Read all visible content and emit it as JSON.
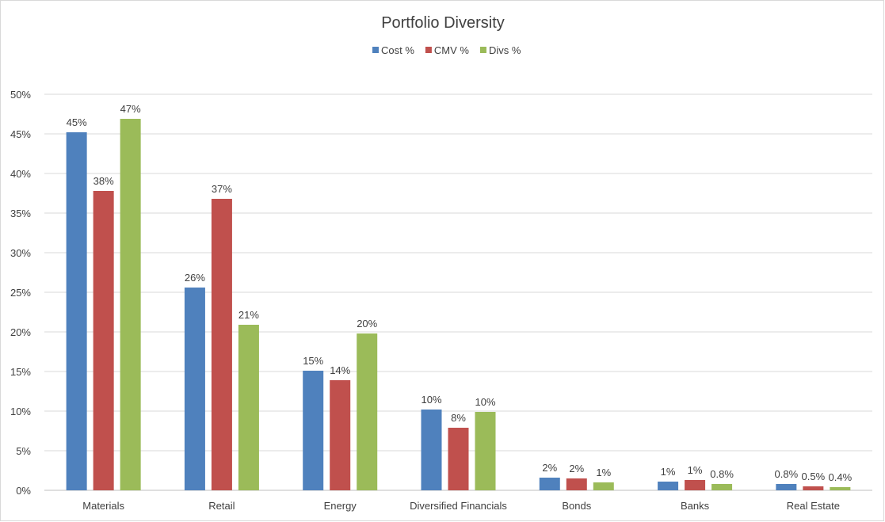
{
  "chart_data": {
    "type": "bar",
    "title": "Portfolio Diversity",
    "xlabel": "",
    "ylabel": "",
    "ylim": [
      0,
      50
    ],
    "yticks": [
      "0%",
      "5%",
      "10%",
      "15%",
      "20%",
      "25%",
      "30%",
      "35%",
      "40%",
      "45%",
      "50%"
    ],
    "grid": true,
    "legend_position": "top",
    "categories": [
      "Materials",
      "Retail",
      "Energy",
      "Diversified Financials",
      "Bonds",
      "Banks",
      "Real Estate"
    ],
    "series": [
      {
        "name": "Cost %",
        "color": "#4f81bd",
        "values": [
          45.2,
          25.6,
          15.1,
          10.2,
          1.6,
          1.1,
          0.8
        ],
        "labels": [
          "45%",
          "26%",
          "15%",
          "10%",
          "2%",
          "1%",
          "0.8%"
        ]
      },
      {
        "name": "CMV %",
        "color": "#c0504d",
        "values": [
          37.8,
          36.8,
          13.9,
          7.9,
          1.5,
          1.3,
          0.5
        ],
        "labels": [
          "38%",
          "37%",
          "14%",
          "8%",
          "2%",
          "1%",
          "0.5%"
        ]
      },
      {
        "name": "Divs %",
        "color": "#9bbb59",
        "values": [
          46.9,
          20.9,
          19.8,
          9.9,
          1.0,
          0.8,
          0.4
        ],
        "labels": [
          "47%",
          "21%",
          "20%",
          "10%",
          "1%",
          "0.8%",
          "0.4%"
        ]
      }
    ]
  }
}
